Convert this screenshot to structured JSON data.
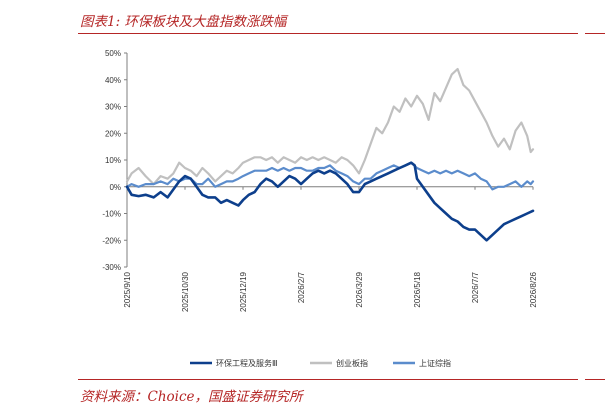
{
  "header": {
    "title": "图表1:  环保板块及大盘指数涨跌幅"
  },
  "footer": {
    "source": "资料来源：Choice，国盛证券研究所"
  },
  "chart_data": {
    "type": "line",
    "title": "",
    "xlabel": "",
    "ylabel": "",
    "ylim": [
      -30,
      50
    ],
    "y_ticks": [
      "50%",
      "40%",
      "30%",
      "20%",
      "10%",
      "0%",
      "-10%",
      "-20%",
      "-30%"
    ],
    "y_tick_values": [
      50,
      40,
      30,
      20,
      10,
      0,
      -10,
      -20,
      -30
    ],
    "x_range": [
      "2025/9/10",
      "2026/8/26"
    ],
    "x_ticks": [
      "2025/9/10",
      "2025/10/30",
      "2025/12/19",
      "2026/2/7",
      "2026/3/29",
      "2026/5/18",
      "2026/7/7",
      "2026/8/26"
    ],
    "grid": false,
    "legend_position": "bottom",
    "series": [
      {
        "name": "环保工程及服务Ⅲ",
        "color": "#0d3f8c",
        "points": [
          [
            "2025/9/10",
            0
          ],
          [
            "2025/9/14",
            -3
          ],
          [
            "2025/9/20",
            -3.5
          ],
          [
            "2025/9/26",
            -3
          ],
          [
            "2025/10/3",
            -4
          ],
          [
            "2025/10/9",
            -2
          ],
          [
            "2025/10/15",
            -4
          ],
          [
            "2025/10/20",
            -1
          ],
          [
            "2025/10/25",
            2
          ],
          [
            "2025/10/30",
            4
          ],
          [
            "2025/11/4",
            3
          ],
          [
            "2025/11/9",
            0
          ],
          [
            "2025/11/14",
            -3
          ],
          [
            "2025/11/19",
            -4
          ],
          [
            "2025/11/25",
            -4
          ],
          [
            "2025/11/30",
            -6
          ],
          [
            "2025/12/5",
            -5
          ],
          [
            "2025/12/10",
            -6
          ],
          [
            "2025/12/15",
            -7
          ],
          [
            "2025/12/19",
            -5
          ],
          [
            "2025/12/24",
            -3
          ],
          [
            "2025/12/29",
            -2
          ],
          [
            "2026/1/3",
            1
          ],
          [
            "2026/1/8",
            3
          ],
          [
            "2026/1/13",
            2
          ],
          [
            "2026/1/18",
            0
          ],
          [
            "2026/1/23",
            2
          ],
          [
            "2026/1/28",
            4
          ],
          [
            "2026/2/2",
            3
          ],
          [
            "2026/2/7",
            1
          ],
          [
            "2026/2/12",
            3
          ],
          [
            "2026/2/17",
            5
          ],
          [
            "2026/2/22",
            6
          ],
          [
            "2026/2/27",
            5
          ],
          [
            "2026/3/4",
            6
          ],
          [
            "2026/3/9",
            5
          ],
          [
            "2026/3/14",
            3
          ],
          [
            "2026/3/19",
            1
          ],
          [
            "2026/3/24",
            -2
          ],
          [
            "2026/3/29",
            -2
          ],
          [
            "2026/4/3",
            1
          ],
          [
            "2026/4/8",
            2
          ],
          [
            "2026/4/13",
            3
          ],
          [
            "2026/4/18",
            4
          ],
          [
            "2026/4/23",
            5
          ],
          [
            "2026/4/28",
            6
          ],
          [
            "2026/5/3",
            7
          ],
          [
            "2026/5/8",
            8
          ],
          [
            "2026/5/13",
            9
          ],
          [
            "2026/5/16",
            8
          ],
          [
            "2026/5/18",
            3
          ],
          [
            "2026/5/23",
            0
          ],
          [
            "2026/5/28",
            -3
          ],
          [
            "2026/6/2",
            -6
          ],
          [
            "2026/6/7",
            -8
          ],
          [
            "2026/6/12",
            -10
          ],
          [
            "2026/6/17",
            -12
          ],
          [
            "2026/6/22",
            -13
          ],
          [
            "2026/6/27",
            -15
          ],
          [
            "2026/7/2",
            -16
          ],
          [
            "2026/7/7",
            -16
          ],
          [
            "2026/7/12",
            -18
          ],
          [
            "2026/7/17",
            -20
          ],
          [
            "2026/7/22",
            -18
          ],
          [
            "2026/7/27",
            -16
          ],
          [
            "2026/8/1",
            -14
          ],
          [
            "2026/8/6",
            -13
          ],
          [
            "2026/8/11",
            -12
          ],
          [
            "2026/8/16",
            -11
          ],
          [
            "2026/8/21",
            -10
          ],
          [
            "2026/8/26",
            -9
          ]
        ]
      },
      {
        "name": "创业板指",
        "color": "#c0c0c0",
        "points": [
          [
            "2025/9/10",
            2
          ],
          [
            "2025/9/14",
            5
          ],
          [
            "2025/9/20",
            7
          ],
          [
            "2025/9/26",
            4
          ],
          [
            "2025/10/3",
            1
          ],
          [
            "2025/10/9",
            4
          ],
          [
            "2025/10/15",
            3
          ],
          [
            "2025/10/20",
            5
          ],
          [
            "2025/10/25",
            9
          ],
          [
            "2025/10/30",
            7
          ],
          [
            "2025/11/4",
            6
          ],
          [
            "2025/11/9",
            4
          ],
          [
            "2025/11/14",
            7
          ],
          [
            "2025/11/19",
            5
          ],
          [
            "2025/11/25",
            2
          ],
          [
            "2025/11/30",
            4
          ],
          [
            "2025/12/5",
            6
          ],
          [
            "2025/12/10",
            5
          ],
          [
            "2025/12/15",
            7
          ],
          [
            "2025/12/19",
            9
          ],
          [
            "2025/12/24",
            10
          ],
          [
            "2025/12/29",
            11
          ],
          [
            "2026/1/3",
            11
          ],
          [
            "2026/1/8",
            10
          ],
          [
            "2026/1/13",
            11
          ],
          [
            "2026/1/18",
            9
          ],
          [
            "2026/1/23",
            11
          ],
          [
            "2026/1/28",
            10
          ],
          [
            "2026/2/2",
            9
          ],
          [
            "2026/2/7",
            11
          ],
          [
            "2026/2/12",
            10
          ],
          [
            "2026/2/17",
            11
          ],
          [
            "2026/2/22",
            10
          ],
          [
            "2026/2/27",
            11
          ],
          [
            "2026/3/4",
            10
          ],
          [
            "2026/3/9",
            9
          ],
          [
            "2026/3/14",
            11
          ],
          [
            "2026/3/19",
            10
          ],
          [
            "2026/3/24",
            8
          ],
          [
            "2026/3/29",
            5
          ],
          [
            "2026/4/3",
            10
          ],
          [
            "2026/4/8",
            16
          ],
          [
            "2026/4/13",
            22
          ],
          [
            "2026/4/18",
            20
          ],
          [
            "2026/4/23",
            24
          ],
          [
            "2026/4/28",
            30
          ],
          [
            "2026/5/3",
            28
          ],
          [
            "2026/5/8",
            33
          ],
          [
            "2026/5/13",
            30
          ],
          [
            "2026/5/18",
            34
          ],
          [
            "2026/5/23",
            31
          ],
          [
            "2026/5/28",
            25
          ],
          [
            "2026/6/2",
            35
          ],
          [
            "2026/6/7",
            32
          ],
          [
            "2026/6/12",
            37
          ],
          [
            "2026/6/17",
            42
          ],
          [
            "2026/6/22",
            44
          ],
          [
            "2026/6/27",
            38
          ],
          [
            "2026/7/2",
            36
          ],
          [
            "2026/7/7",
            32
          ],
          [
            "2026/7/12",
            28
          ],
          [
            "2026/7/17",
            24
          ],
          [
            "2026/7/22",
            19
          ],
          [
            "2026/7/27",
            15
          ],
          [
            "2026/8/1",
            18
          ],
          [
            "2026/8/6",
            14
          ],
          [
            "2026/8/11",
            21
          ],
          [
            "2026/8/16",
            24
          ],
          [
            "2026/8/21",
            19
          ],
          [
            "2026/8/24",
            13
          ],
          [
            "2026/8/26",
            14
          ]
        ]
      },
      {
        "name": "上证综指",
        "color": "#5b8ccc",
        "points": [
          [
            "2025/9/10",
            0
          ],
          [
            "2025/9/14",
            1
          ],
          [
            "2025/9/20",
            0
          ],
          [
            "2025/9/26",
            1
          ],
          [
            "2025/10/3",
            1
          ],
          [
            "2025/10/9",
            2
          ],
          [
            "2025/10/15",
            1
          ],
          [
            "2025/10/20",
            3
          ],
          [
            "2025/10/25",
            2
          ],
          [
            "2025/10/30",
            3
          ],
          [
            "2025/11/4",
            3
          ],
          [
            "2025/11/9",
            1
          ],
          [
            "2025/11/14",
            1
          ],
          [
            "2025/11/19",
            3
          ],
          [
            "2025/11/25",
            0
          ],
          [
            "2025/11/30",
            1
          ],
          [
            "2025/12/5",
            2
          ],
          [
            "2025/12/10",
            2
          ],
          [
            "2025/12/15",
            3
          ],
          [
            "2025/12/19",
            4
          ],
          [
            "2025/12/24",
            5
          ],
          [
            "2025/12/29",
            6
          ],
          [
            "2026/1/3",
            6
          ],
          [
            "2026/1/8",
            6
          ],
          [
            "2026/1/13",
            7
          ],
          [
            "2026/1/18",
            6
          ],
          [
            "2026/1/23",
            7
          ],
          [
            "2026/1/28",
            6
          ],
          [
            "2026/2/2",
            7
          ],
          [
            "2026/2/7",
            7
          ],
          [
            "2026/2/12",
            6
          ],
          [
            "2026/2/17",
            6
          ],
          [
            "2026/2/22",
            7
          ],
          [
            "2026/2/27",
            7
          ],
          [
            "2026/3/4",
            8
          ],
          [
            "2026/3/9",
            6
          ],
          [
            "2026/3/14",
            5
          ],
          [
            "2026/3/19",
            4
          ],
          [
            "2026/3/24",
            2
          ],
          [
            "2026/3/29",
            1
          ],
          [
            "2026/4/3",
            3
          ],
          [
            "2026/4/8",
            3
          ],
          [
            "2026/4/13",
            5
          ],
          [
            "2026/4/18",
            6
          ],
          [
            "2026/4/23",
            7
          ],
          [
            "2026/4/28",
            8
          ],
          [
            "2026/5/3",
            7
          ],
          [
            "2026/5/8",
            8
          ],
          [
            "2026/5/13",
            9
          ],
          [
            "2026/5/18",
            7
          ],
          [
            "2026/5/23",
            6
          ],
          [
            "2026/5/28",
            5
          ],
          [
            "2026/6/2",
            6
          ],
          [
            "2026/6/7",
            5
          ],
          [
            "2026/6/12",
            6
          ],
          [
            "2026/6/17",
            5
          ],
          [
            "2026/6/22",
            6
          ],
          [
            "2026/6/27",
            5
          ],
          [
            "2026/7/2",
            4
          ],
          [
            "2026/7/7",
            5
          ],
          [
            "2026/7/12",
            3
          ],
          [
            "2026/7/17",
            2
          ],
          [
            "2026/7/22",
            -1
          ],
          [
            "2026/7/27",
            0
          ],
          [
            "2026/8/1",
            0
          ],
          [
            "2026/8/6",
            1
          ],
          [
            "2026/8/11",
            2
          ],
          [
            "2026/8/16",
            0
          ],
          [
            "2026/8/21",
            2
          ],
          [
            "2026/8/24",
            1
          ],
          [
            "2026/8/26",
            2
          ]
        ]
      }
    ]
  }
}
